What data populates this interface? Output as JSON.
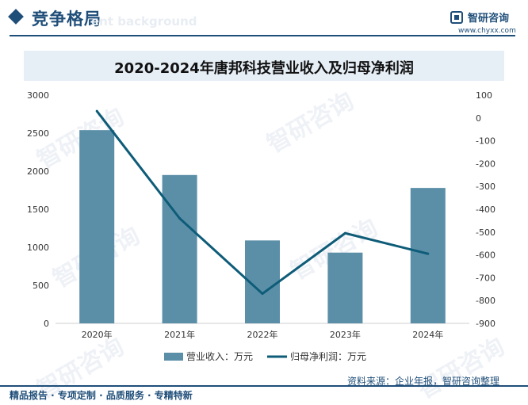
{
  "header": {
    "section_title": "竞争格局",
    "ghost_text": "ent background",
    "logo_name": "智研咨询",
    "logo_url": "www.chyxx.com",
    "accent_color": "#1f4e79"
  },
  "chart_data": {
    "type": "bar+line",
    "title": "2020-2024年唐邦科技营业收入及归母净利润",
    "categories": [
      "2020年",
      "2021年",
      "2022年",
      "2023年",
      "2024年"
    ],
    "series": [
      {
        "name": "营业收入：万元",
        "type": "bar",
        "axis": "left",
        "color": "#5b8fa8",
        "values": [
          2540,
          1950,
          1090,
          930,
          1780
        ]
      },
      {
        "name": "归母净利润：万元",
        "type": "line",
        "axis": "right",
        "color": "#0e5c78",
        "values": [
          30,
          -440,
          -770,
          -505,
          -595
        ]
      }
    ],
    "left_axis": {
      "min": 0,
      "max": 3000,
      "ticks": [
        0,
        500,
        1000,
        1500,
        2000,
        2500,
        3000
      ]
    },
    "right_axis": {
      "min": -900,
      "max": 100,
      "ticks": [
        100,
        0,
        -100,
        -200,
        -300,
        -400,
        -500,
        -600,
        -700,
        -800,
        -900
      ]
    },
    "legend_position": "bottom"
  },
  "watermark_text": "智研咨询",
  "source": "资料来源：企业年报，智研咨询整理",
  "footer": "精品报告 · 专项定制 · 品质服务 · 专精特新"
}
